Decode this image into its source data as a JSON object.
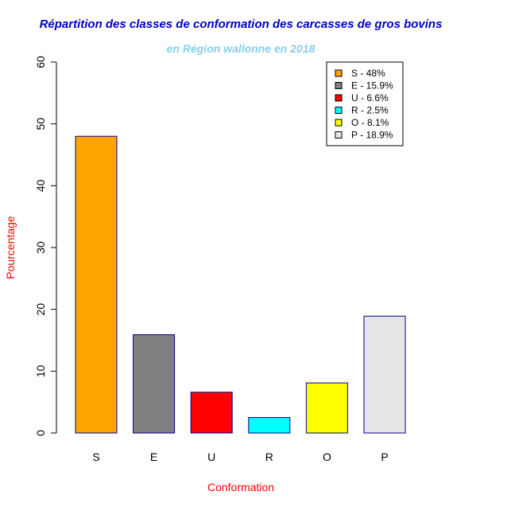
{
  "chart_data": {
    "type": "bar",
    "title": "Répartition des classes de conformation des carcasses de gros bovins",
    "subtitle": "en Région wallonne en 2018",
    "xlabel": "Conformation",
    "ylabel": "Pourcentage",
    "categories": [
      "S",
      "E",
      "U",
      "R",
      "O",
      "P"
    ],
    "values": [
      48,
      15.9,
      6.6,
      2.5,
      8.1,
      18.9
    ],
    "ylim": [
      0,
      60
    ],
    "yticks": [
      "0",
      "10",
      "20",
      "30",
      "40",
      "50",
      "60"
    ],
    "legend": {
      "position": "top-right",
      "entries": [
        "S - 48%",
        "E - 15.9%",
        "U - 6.6%",
        "R - 2.5%",
        "O - 8.1%",
        "P - 18.9%"
      ]
    },
    "colors": [
      "#FFA500",
      "#808080",
      "#FF0000",
      "#00FFFF",
      "#FFFF00",
      "#E5E5E5"
    ],
    "bar_border_color": "#00008B",
    "title_color": "#0000CD",
    "subtitle_color": "#87CEEB",
    "axis_label_color": "#FF0000",
    "grid": false
  }
}
